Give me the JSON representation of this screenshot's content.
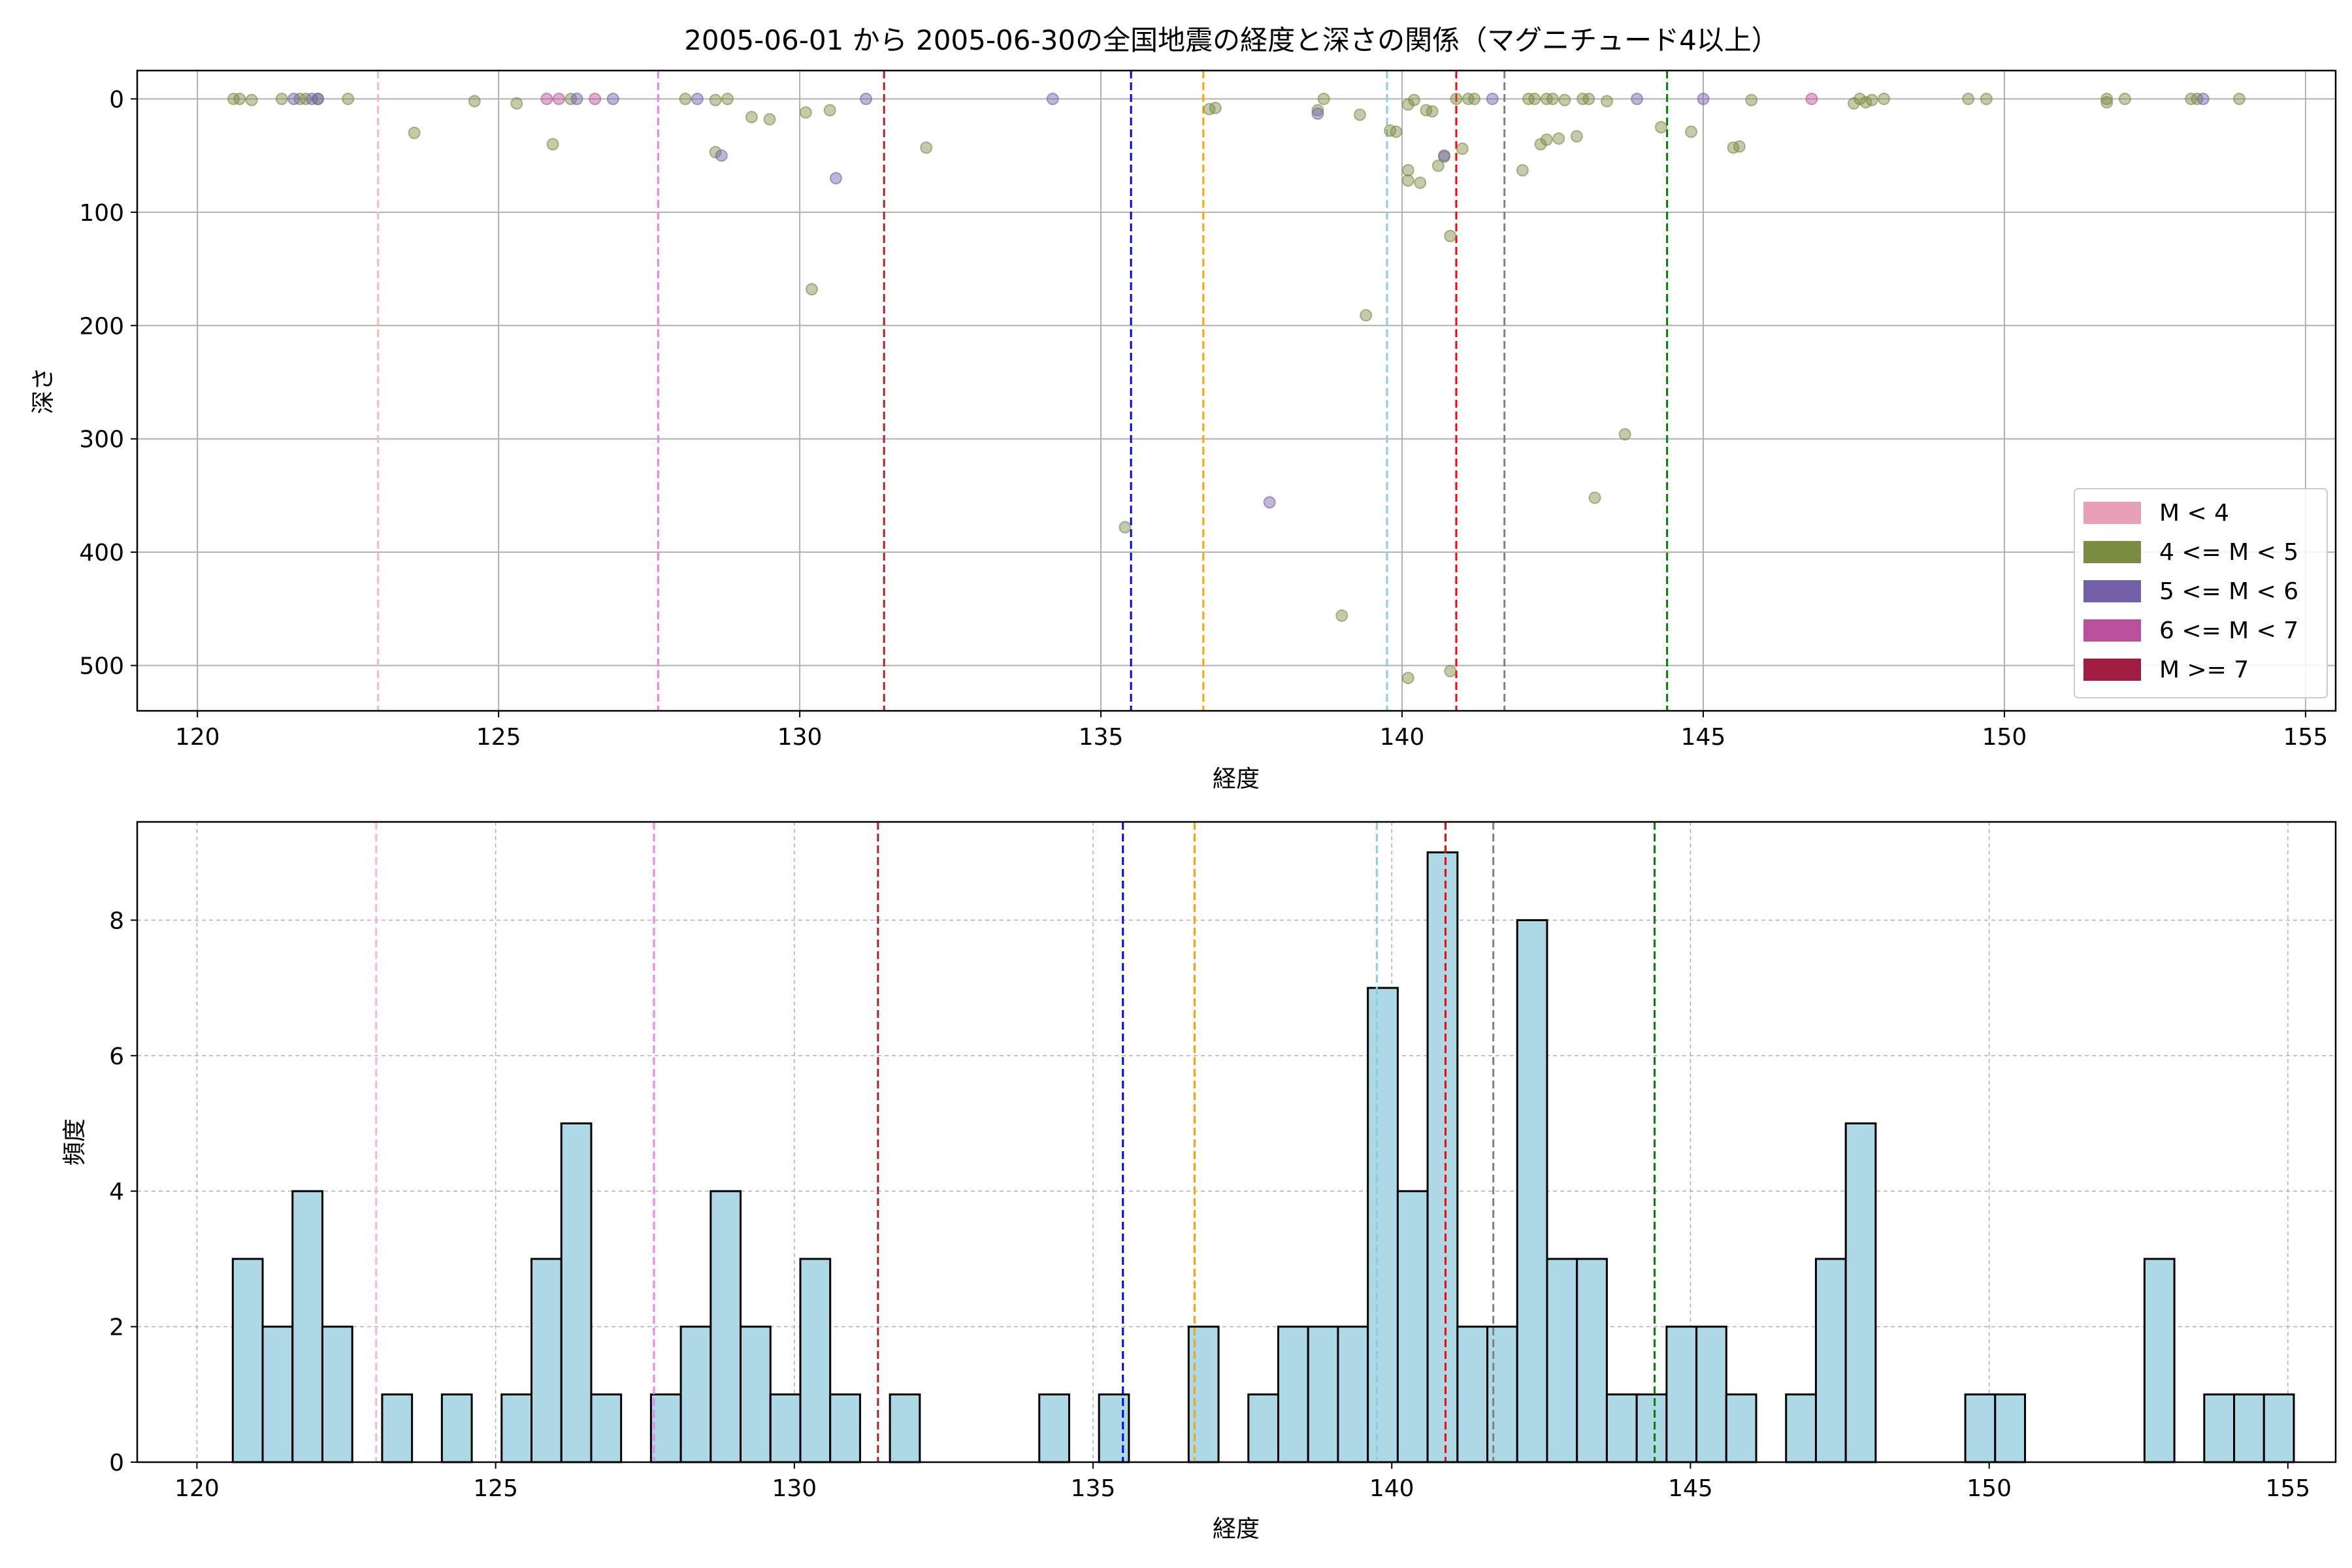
{
  "chart_data": [
    {
      "type": "scatter",
      "title": "2005-06-01 から 2005-06-30の全国地震の経度と深さの関係（マグニチュード4以上）",
      "xlabel": "経度",
      "ylabel": "深さ",
      "xlim": [
        119,
        155.5
      ],
      "ylim": [
        540,
        -25
      ],
      "y_inverted": true,
      "xticks": [
        120,
        125,
        130,
        135,
        140,
        145,
        150,
        155
      ],
      "yticks": [
        0,
        100,
        200,
        300,
        400,
        500
      ],
      "grid": true,
      "legend_position": "lower-right",
      "legend": [
        {
          "label": "M < 4",
          "color": "#e8a0b8"
        },
        {
          "label": "4 <= M < 5",
          "color": "#7a8c42"
        },
        {
          "label": "5 <= M < 6",
          "color": "#7460a8"
        },
        {
          "label": "6 <= M < 7",
          "color": "#b8509a"
        },
        {
          "label": "M >= 7",
          "color": "#a01c40"
        }
      ],
      "series": [
        {
          "name": "4 <= M < 5",
          "color": "#7a8c42",
          "points": [
            [
              120.6,
              0
            ],
            [
              120.7,
              0
            ],
            [
              120.9,
              1
            ],
            [
              121.4,
              0
            ],
            [
              121.7,
              0
            ],
            [
              121.8,
              0
            ],
            [
              122.0,
              0
            ],
            [
              122.5,
              0
            ],
            [
              123.6,
              30
            ],
            [
              124.6,
              2
            ],
            [
              125.3,
              4
            ],
            [
              125.9,
              40
            ],
            [
              126.2,
              0
            ],
            [
              128.1,
              0
            ],
            [
              128.6,
              47
            ],
            [
              128.6,
              1
            ],
            [
              128.8,
              0
            ],
            [
              129.2,
              16
            ],
            [
              129.5,
              18
            ],
            [
              130.1,
              12
            ],
            [
              130.2,
              168
            ],
            [
              130.5,
              10
            ],
            [
              132.1,
              43
            ],
            [
              135.4,
              378
            ],
            [
              136.8,
              9
            ],
            [
              136.9,
              8
            ],
            [
              138.6,
              10
            ],
            [
              138.7,
              0
            ],
            [
              139.0,
              456
            ],
            [
              139.3,
              14
            ],
            [
              139.4,
              191
            ],
            [
              139.8,
              28
            ],
            [
              139.9,
              29
            ],
            [
              140.1,
              5
            ],
            [
              140.1,
              63
            ],
            [
              140.1,
              72
            ],
            [
              140.2,
              1
            ],
            [
              140.3,
              74
            ],
            [
              140.4,
              10
            ],
            [
              140.5,
              11
            ],
            [
              140.6,
              59
            ],
            [
              140.7,
              51
            ],
            [
              140.8,
              121
            ],
            [
              140.8,
              505
            ],
            [
              140.1,
              511
            ],
            [
              140.9,
              0
            ],
            [
              141.0,
              44
            ],
            [
              141.1,
              0
            ],
            [
              141.2,
              0
            ],
            [
              142.0,
              63
            ],
            [
              142.1,
              0
            ],
            [
              142.2,
              0
            ],
            [
              142.3,
              40
            ],
            [
              142.4,
              0
            ],
            [
              142.4,
              36
            ],
            [
              142.5,
              0
            ],
            [
              142.6,
              35
            ],
            [
              142.7,
              1
            ],
            [
              142.9,
              33
            ],
            [
              143.0,
              0
            ],
            [
              143.1,
              0
            ],
            [
              143.2,
              352
            ],
            [
              143.4,
              2
            ],
            [
              143.7,
              296
            ],
            [
              144.3,
              25
            ],
            [
              144.8,
              29
            ],
            [
              145.5,
              43
            ],
            [
              145.6,
              42
            ],
            [
              145.8,
              1
            ],
            [
              147.5,
              4
            ],
            [
              147.6,
              0
            ],
            [
              147.7,
              3
            ],
            [
              147.8,
              1
            ],
            [
              148.0,
              0
            ],
            [
              149.4,
              0
            ],
            [
              149.7,
              0
            ],
            [
              151.7,
              3
            ],
            [
              151.7,
              0
            ],
            [
              152.0,
              0
            ],
            [
              153.1,
              0
            ],
            [
              153.2,
              0
            ],
            [
              153.9,
              0
            ]
          ]
        },
        {
          "name": "5 <= M < 6",
          "color": "#7460a8",
          "points": [
            [
              121.6,
              0
            ],
            [
              121.9,
              0
            ],
            [
              122.0,
              0
            ],
            [
              126.3,
              0
            ],
            [
              126.9,
              0
            ],
            [
              128.3,
              0
            ],
            [
              128.7,
              50
            ],
            [
              130.6,
              70
            ],
            [
              131.1,
              0
            ],
            [
              134.2,
              0
            ],
            [
              137.8,
              356
            ],
            [
              138.6,
              13
            ],
            [
              140.7,
              50
            ],
            [
              141.5,
              0
            ],
            [
              143.9,
              0
            ],
            [
              145.0,
              0
            ],
            [
              153.3,
              0
            ]
          ]
        },
        {
          "name": "6 <= M < 7",
          "color": "#b8509a",
          "points": [
            [
              125.8,
              0
            ],
            [
              126.0,
              0
            ],
            [
              126.6,
              0
            ],
            [
              146.8,
              0
            ]
          ]
        }
      ],
      "vlines": [
        {
          "x": 123.0,
          "color": "#ffb6c1"
        },
        {
          "x": 127.65,
          "color": "#ee82ee"
        },
        {
          "x": 131.4,
          "color": "#b22222"
        },
        {
          "x": 135.5,
          "color": "#0000ff"
        },
        {
          "x": 136.7,
          "color": "#ffa500"
        },
        {
          "x": 139.75,
          "color": "#87ceeb"
        },
        {
          "x": 140.9,
          "color": "#ff0000"
        },
        {
          "x": 141.7,
          "color": "#808080"
        },
        {
          "x": 144.4,
          "color": "#008000"
        }
      ]
    },
    {
      "type": "bar",
      "title": "",
      "xlabel": "経度",
      "ylabel": "頻度",
      "xlim": [
        119,
        155.8
      ],
      "ylim": [
        0,
        9.45
      ],
      "xticks": [
        120,
        125,
        130,
        135,
        140,
        145,
        150,
        155
      ],
      "yticks": [
        0,
        2,
        4,
        6,
        8
      ],
      "grid": true,
      "bar_color": "#add8e6",
      "bin_start": 120.6,
      "bin_width": 0.5,
      "values": [
        3,
        2,
        4,
        2,
        0,
        1,
        0,
        1,
        0,
        1,
        3,
        5,
        1,
        0,
        1,
        2,
        4,
        2,
        1,
        3,
        1,
        0,
        1,
        0,
        0,
        0,
        0,
        1,
        0,
        1,
        0,
        0,
        2,
        0,
        1,
        2,
        2,
        2,
        7,
        4,
        9,
        2,
        2,
        8,
        3,
        3,
        1,
        1,
        2,
        2,
        1,
        0,
        1,
        3,
        5,
        0,
        0,
        0,
        1,
        1,
        0,
        0,
        0,
        0,
        3,
        0,
        1,
        1,
        1
      ],
      "vlines": [
        {
          "x": 123.0,
          "color": "#ffb6c1"
        },
        {
          "x": 127.65,
          "color": "#ee82ee"
        },
        {
          "x": 131.4,
          "color": "#b22222"
        },
        {
          "x": 135.5,
          "color": "#0000ff"
        },
        {
          "x": 136.7,
          "color": "#ffa500"
        },
        {
          "x": 139.75,
          "color": "#87ceeb"
        },
        {
          "x": 140.9,
          "color": "#ff0000"
        },
        {
          "x": 141.7,
          "color": "#808080"
        },
        {
          "x": 144.4,
          "color": "#008000"
        }
      ]
    }
  ]
}
